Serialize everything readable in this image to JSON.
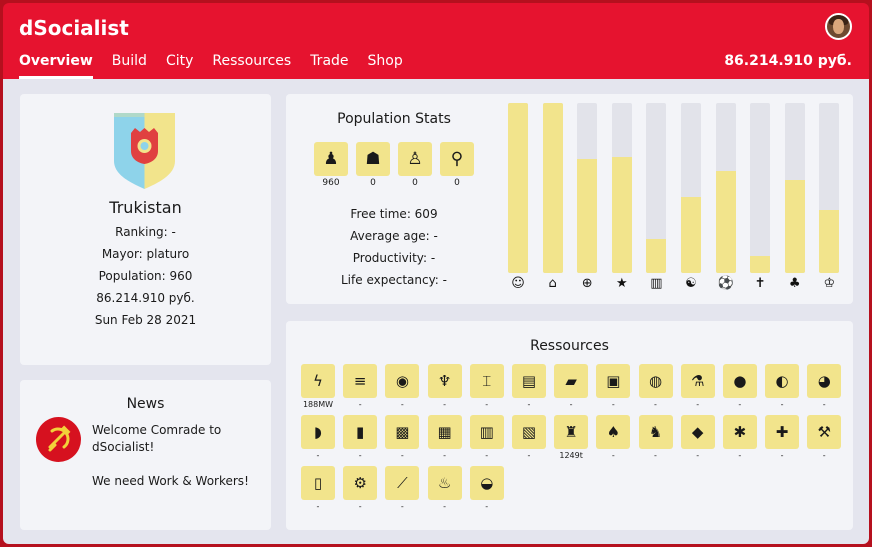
{
  "app": {
    "title": "dSocialist",
    "balance": "86.214.910 руб."
  },
  "nav": [
    {
      "label": "Overview",
      "active": true
    },
    {
      "label": "Build"
    },
    {
      "label": "City"
    },
    {
      "label": "Ressources"
    },
    {
      "label": "Trade"
    },
    {
      "label": "Shop"
    }
  ],
  "city": {
    "name": "Trukistan",
    "ranking": "Ranking: -",
    "mayor": "Mayor: platuro",
    "population": "Population: 960",
    "money": "86.214.910 руб.",
    "date": "Sun Feb 28 2021",
    "crest_colors": {
      "left": "#8ed3ea",
      "right": "#f2e48c",
      "emblem": "#e04040"
    }
  },
  "news": {
    "title": "News",
    "icon": "hammer-sickle-icon",
    "line1": "Welcome Comrade to dSocialist!",
    "line2": "We need Work & Workers!"
  },
  "population": {
    "title": "Population Stats",
    "groups": [
      {
        "icon": "adult-icon",
        "value": "960"
      },
      {
        "icon": "family-icon",
        "value": "0"
      },
      {
        "icon": "child-icon",
        "value": "0"
      },
      {
        "icon": "elderly-icon",
        "value": "0"
      }
    ],
    "free_time": "Free time: 609",
    "average_age": "Average age: -",
    "productivity": "Productivity: -",
    "life_expectancy": "Life expectancy: -"
  },
  "needs": [
    {
      "icon": "happiness-icon",
      "level": 1.0
    },
    {
      "icon": "housing-icon",
      "level": 1.0
    },
    {
      "icon": "health-icon",
      "level": 0.67
    },
    {
      "icon": "star-icon",
      "level": 0.68
    },
    {
      "icon": "drink-icon",
      "level": 0.2
    },
    {
      "icon": "culture-icon",
      "level": 0.45
    },
    {
      "icon": "sport-icon",
      "level": 0.6
    },
    {
      "icon": "religion-icon",
      "level": 0.1
    },
    {
      "icon": "food-icon",
      "level": 0.55
    },
    {
      "icon": "education-icon",
      "level": 0.37
    }
  ],
  "resources": {
    "title": "Ressources",
    "items": [
      {
        "icon": "electricity-icon",
        "value": "188MW"
      },
      {
        "icon": "stone-icon",
        "value": "-"
      },
      {
        "icon": "ore-icon",
        "value": "-"
      },
      {
        "icon": "wheat-icon",
        "value": "-"
      },
      {
        "icon": "steel-beam-icon",
        "value": "-"
      },
      {
        "icon": "timber-icon",
        "value": "-"
      },
      {
        "icon": "plank-icon",
        "value": "-"
      },
      {
        "icon": "concrete-icon",
        "value": "-"
      },
      {
        "icon": "oil-barrel-icon",
        "value": "-"
      },
      {
        "icon": "chemicals-icon",
        "value": "-"
      },
      {
        "icon": "coal-icon",
        "value": "-"
      },
      {
        "icon": "metal-ore-icon",
        "value": "-"
      },
      {
        "icon": "gravel-icon",
        "value": "-"
      },
      {
        "icon": "meat-icon",
        "value": "-"
      },
      {
        "icon": "can-icon",
        "value": "-"
      },
      {
        "icon": "bread-icon",
        "value": "-"
      },
      {
        "icon": "textile-icon",
        "value": "-"
      },
      {
        "icon": "beer-icon",
        "value": "-"
      },
      {
        "icon": "fertilizer-icon",
        "value": "-"
      },
      {
        "icon": "goods-icon",
        "value": "1249t"
      },
      {
        "icon": "vegetables-icon",
        "value": "-"
      },
      {
        "icon": "cattle-icon",
        "value": "-"
      },
      {
        "icon": "leather-icon",
        "value": "-"
      },
      {
        "icon": "electronics-icon",
        "value": "-"
      },
      {
        "icon": "medicine-icon",
        "value": "-"
      },
      {
        "icon": "tools-icon",
        "value": "-"
      },
      {
        "icon": "bottles-icon",
        "value": "-"
      },
      {
        "icon": "machine-parts-icon",
        "value": "-"
      },
      {
        "icon": "weapons-icon",
        "value": "-"
      },
      {
        "icon": "alcohol-icon",
        "value": "-"
      },
      {
        "icon": "plastic-icon",
        "value": "-"
      }
    ]
  }
}
